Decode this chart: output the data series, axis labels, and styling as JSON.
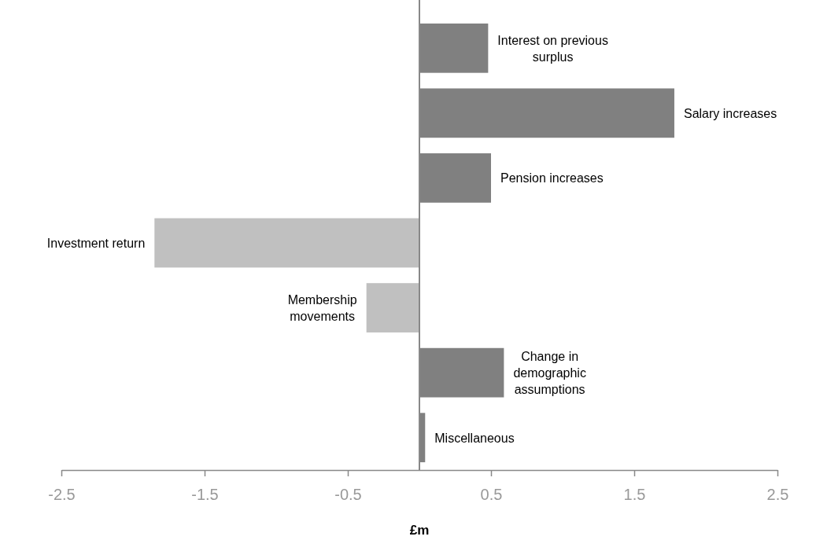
{
  "chart_data": {
    "type": "bar",
    "orientation": "horizontal",
    "xlabel": "£m",
    "categories": [
      "Interest on previous surplus",
      "Salary increases",
      "Pension increases",
      "Investment return",
      "Membership movements",
      "Change in demographic assumptions",
      "Miscellaneous"
    ],
    "values": [
      0.48,
      1.78,
      0.5,
      -1.85,
      -0.37,
      0.59,
      0.04
    ],
    "colors": [
      "#808080",
      "#808080",
      "#808080",
      "#c0c0c0",
      "#c0c0c0",
      "#808080",
      "#808080"
    ],
    "xlim": [
      -2.5,
      2.5
    ],
    "xticks": [
      -2.5,
      -1.5,
      -0.5,
      0.5,
      1.5,
      2.5
    ],
    "grid": false
  }
}
